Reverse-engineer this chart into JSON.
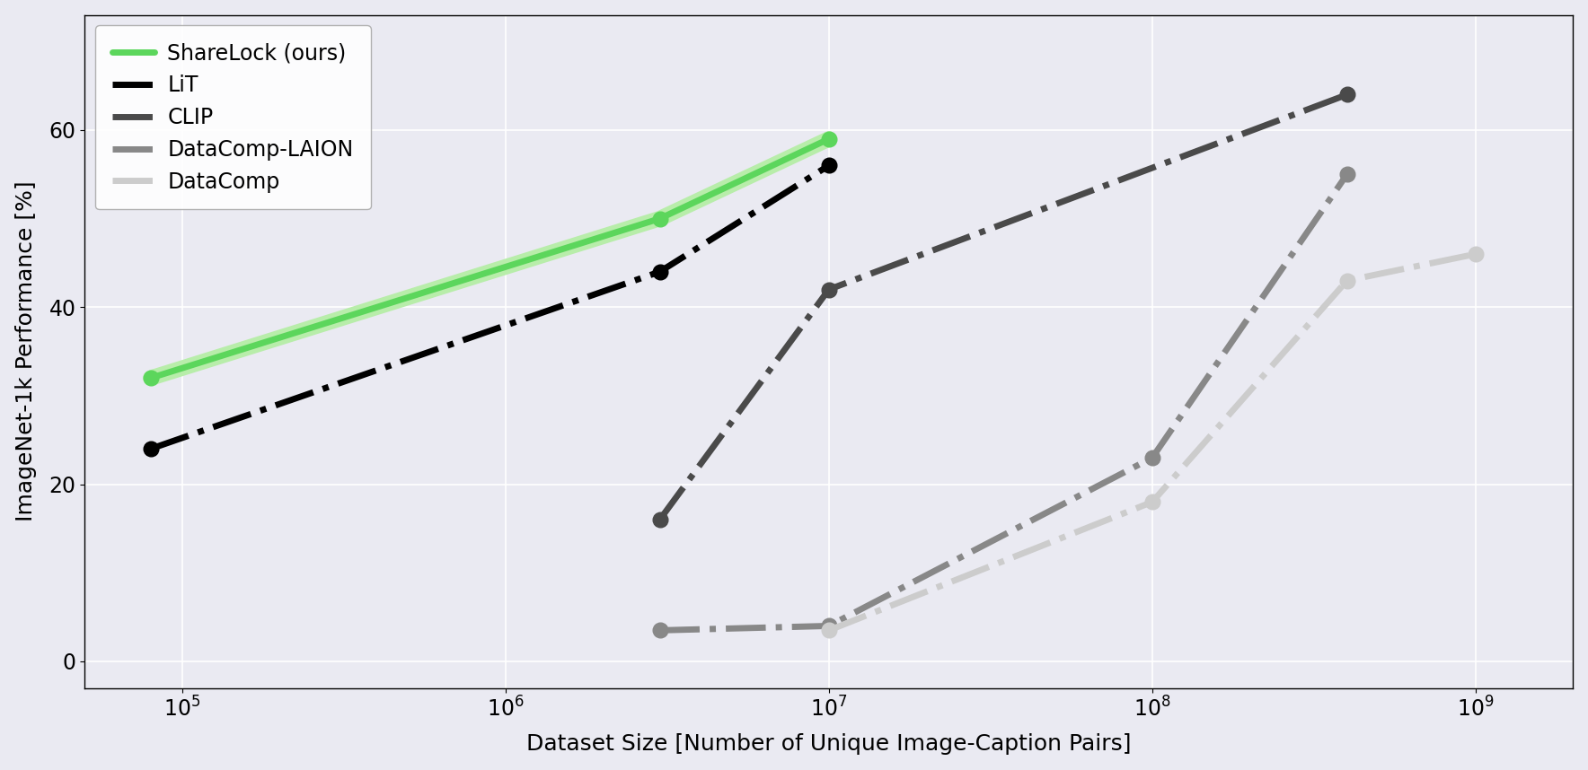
{
  "series": [
    {
      "label": "ShareLock (ours)",
      "color": "#5cd65c",
      "shadow_color": "#b8edaa",
      "linestyle": "solid",
      "linewidth": 5.0,
      "marker": "o",
      "markersize": 12,
      "x": [
        80000.0,
        3000000.0,
        10000000.0
      ],
      "y": [
        32,
        50,
        59
      ],
      "has_shadow": true,
      "zorder": 4
    },
    {
      "label": "LiT",
      "color": "#000000",
      "linestyle": "dashdot",
      "linewidth": 5.0,
      "marker": "o",
      "markersize": 12,
      "x": [
        80000.0,
        3000000.0,
        10000000.0
      ],
      "y": [
        24,
        44,
        56
      ],
      "has_shadow": false,
      "zorder": 3
    },
    {
      "label": "CLIP",
      "color": "#4a4a4a",
      "linestyle": "dashdot",
      "linewidth": 5.0,
      "marker": "o",
      "markersize": 12,
      "x": [
        3000000.0,
        10000000.0,
        400000000.0
      ],
      "y": [
        16,
        42,
        64
      ],
      "has_shadow": false,
      "zorder": 3
    },
    {
      "label": "DataComp-LAION",
      "color": "#888888",
      "linestyle": "dashdot",
      "linewidth": 5.0,
      "marker": "o",
      "markersize": 12,
      "x": [
        3000000.0,
        10000000.0,
        100000000.0,
        400000000.0
      ],
      "y": [
        3.5,
        4,
        23,
        55
      ],
      "has_shadow": false,
      "zorder": 3
    },
    {
      "label": "DataComp",
      "color": "#cccccc",
      "linestyle": "dashdot",
      "linewidth": 5.0,
      "marker": "o",
      "markersize": 12,
      "x": [
        10000000.0,
        100000000.0,
        400000000.0,
        1000000000.0
      ],
      "y": [
        3.5,
        18,
        43,
        46
      ],
      "has_shadow": false,
      "zorder": 3
    }
  ],
  "xlabel": "Dataset Size [Number of Unique Image-Caption Pairs]",
  "ylabel": "ImageNet-1k Performance [%]",
  "xlim": [
    50000.0,
    2000000000.0
  ],
  "ylim": [
    -3,
    73
  ],
  "yticks": [
    0,
    20,
    40,
    60
  ],
  "background_color": "#eaeaf2",
  "axes_facecolor": "#eaeaf2",
  "grid_color": "#ffffff",
  "font_size": 17,
  "label_font_size": 18,
  "legend_font_size": 17
}
